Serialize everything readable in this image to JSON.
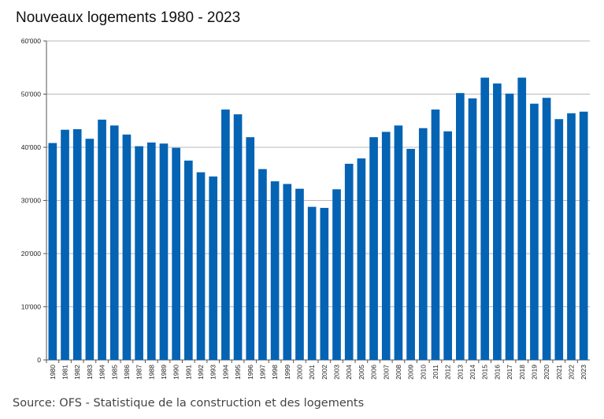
{
  "chart_data": {
    "type": "bar",
    "title": "Nouveaux logements 1980 - 2023",
    "xlabel": "",
    "ylabel": "",
    "ylim": [
      0,
      60000
    ],
    "y_ticks": [
      "0",
      "10'000",
      "20'000",
      "30'000",
      "40'000",
      "50'000",
      "60'000"
    ],
    "grid": "horizontal",
    "bar_color": "#0563B4",
    "categories": [
      "1980",
      "1981",
      "1982",
      "1983",
      "1984",
      "1985",
      "1986",
      "1987",
      "1988",
      "1989",
      "1990",
      "1991",
      "1992",
      "1993",
      "1994",
      "1995",
      "1996",
      "1997",
      "1998",
      "1999",
      "2000",
      "2001",
      "2002",
      "2003",
      "2004",
      "2005",
      "2006",
      "2007",
      "2008",
      "2009",
      "2010",
      "2011",
      "2012",
      "2013",
      "2014",
      "2015",
      "2016",
      "2017",
      "2018",
      "2019",
      "2020",
      "2021",
      "2022",
      "2023"
    ],
    "values": [
      40800,
      43300,
      43400,
      41600,
      45200,
      44100,
      42400,
      40200,
      40900,
      40700,
      39900,
      37500,
      35300,
      34500,
      47100,
      46200,
      41900,
      35900,
      33600,
      33100,
      32200,
      28800,
      28600,
      32100,
      36900,
      37900,
      41900,
      42900,
      44100,
      39700,
      43600,
      47100,
      43000,
      50200,
      49200,
      53100,
      52000,
      50100,
      53100,
      48200,
      49300,
      45300,
      46400,
      46700
    ]
  },
  "source": "Source: OFS - Statistique de la construction et des logements"
}
